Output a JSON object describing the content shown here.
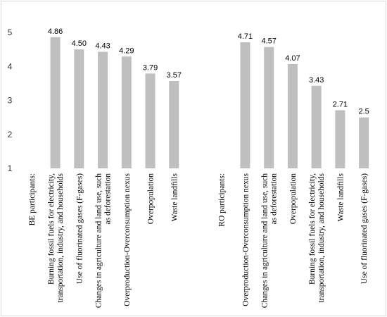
{
  "chart_data": {
    "type": "bar",
    "title": "",
    "xlabel": "",
    "ylabel": "",
    "ylim": [
      1,
      5
    ],
    "yticks": [
      "1",
      "2",
      "3",
      "4",
      "5"
    ],
    "grid": false,
    "bar_color": "#bfbfbf",
    "categories": [
      "BE participants:",
      "Burning fossil fuels for electricity, transportation, industry, and households",
      "Use of fluorinated gases (F-gases)",
      "Changes in agriculture and land use, such as deforestation",
      "Overproduction-Overconsumption nexus",
      "Overpopulation",
      "Waste landfills",
      "",
      "RO participants:",
      "Overproduction-Overconsumption nexus",
      "Changes in agriculture and land use, such as deforestation",
      "Overpopulation",
      "Burning fossil fuels for electricity, transportation, industry, and households",
      "Waste landfills",
      "Use of fluorinated gases (F-gases)"
    ],
    "values": [
      null,
      4.86,
      4.5,
      4.43,
      4.29,
      3.79,
      3.57,
      null,
      null,
      4.71,
      4.57,
      4.07,
      3.43,
      2.71,
      2.5
    ],
    "value_labels": [
      "",
      "4.86",
      "4.50",
      "4.43",
      "4.29",
      "3.79",
      "3.57",
      "",
      "",
      "4.71",
      "4.57",
      "4.07",
      "3.43",
      "2.71",
      "2.5"
    ],
    "category_lines": [
      [
        "BE participants:"
      ],
      [
        "Burning fossil fuels for electricity,",
        "transportation, industry, and households"
      ],
      [
        "Use of fluorinated gases (F-gases)"
      ],
      [
        "Changes in agriculture and land use, such",
        "as deforestation"
      ],
      [
        "Overproduction-Overconsumption nexus"
      ],
      [
        "Overpopulation"
      ],
      [
        "Waste landfills"
      ],
      [],
      [
        "RO participants:"
      ],
      [
        "Overproduction-Overconsumption nexus"
      ],
      [
        "Changes in agriculture and land use, such",
        "as deforestation"
      ],
      [
        "Overpopulation"
      ],
      [
        "Burning fossil fuels for electricity,",
        "transportation, industry, and households"
      ],
      [
        "Waste landfills"
      ],
      [
        "Use of fluorinated gases (F-gases)"
      ]
    ]
  }
}
